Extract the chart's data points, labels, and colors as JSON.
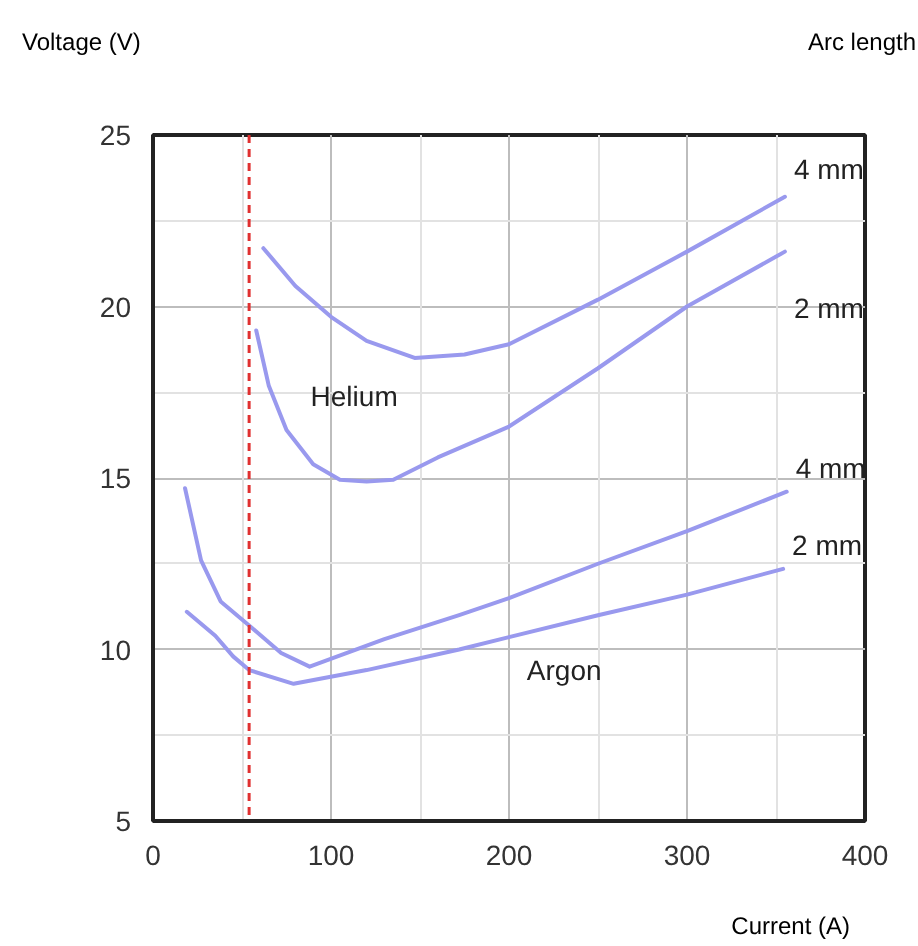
{
  "chart_data": {
    "type": "line",
    "xlabel": "Current (A)",
    "ylabel": "Voltage (V)",
    "xlim": [
      0,
      400
    ],
    "ylim": [
      5,
      25
    ],
    "xticks": [
      0,
      {
        "value": 50,
        "label": null
      },
      100,
      {
        "value": 150,
        "label": null
      },
      200,
      {
        "value": 250,
        "label": null
      },
      300,
      {
        "value": 350,
        "label": null
      },
      400
    ],
    "yticks": [
      5,
      {
        "value": 7.5,
        "label": null
      },
      10,
      {
        "value": 12.5,
        "label": null
      },
      15,
      {
        "value": 17.5,
        "label": null
      },
      20,
      {
        "value": 22.5,
        "label": null
      },
      25
    ],
    "grid": true,
    "marker": "none",
    "line_style": "solid",
    "series": [
      {
        "name": "4 mm",
        "color": "#9999ee",
        "x": [
          62,
          80,
          100,
          120,
          147,
          175,
          200,
          250,
          300,
          355
        ],
        "values": [
          21.7,
          20.6,
          19.7,
          19.0,
          18.5,
          18.6,
          18.9,
          20.2,
          21.6,
          23.2
        ]
      },
      {
        "name": "2 mm",
        "color": "#9999ee",
        "x": [
          58,
          65,
          75,
          90,
          105,
          120,
          135,
          160,
          200,
          250,
          300,
          355
        ],
        "values": [
          19.3,
          17.7,
          16.4,
          15.4,
          14.95,
          14.9,
          14.95,
          15.6,
          16.5,
          18.2,
          20.0,
          21.6
        ]
      },
      {
        "name": "4 mm",
        "color": "#9999ee",
        "x": [
          18,
          27,
          38,
          54,
          72,
          88,
          130,
          172,
          200,
          250,
          300,
          356
        ],
        "values": [
          14.7,
          12.6,
          11.4,
          10.7,
          9.9,
          9.5,
          10.3,
          11.0,
          11.5,
          12.5,
          13.45,
          14.6
        ]
      },
      {
        "name": "2 mm",
        "color": "#9999ee",
        "x": [
          19,
          35,
          45,
          54,
          79,
          120,
          172,
          200,
          250,
          300,
          354
        ],
        "values": [
          11.1,
          10.4,
          9.8,
          9.4,
          9.0,
          9.4,
          10.0,
          10.36,
          11.0,
          11.6,
          12.35
        ]
      }
    ],
    "ref_lines": [
      {
        "axis": "x",
        "value": 54,
        "color": "#e03030",
        "line_style": "dashed"
      }
    ],
    "annotations": [
      "Arc length",
      "Helium",
      "Argon"
    ]
  }
}
